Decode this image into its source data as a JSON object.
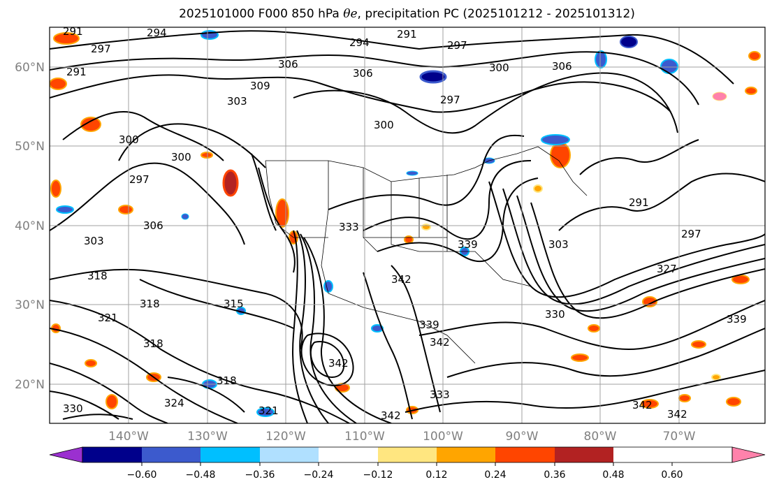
{
  "title_prefix": "2025101000 F000 850 hPa ",
  "title_symbol": "θe",
  "title_suffix": ", precipitation PC (2025101212 - 2025101312)",
  "colors": {
    "contour": "#000000",
    "grid": "#a0a0a0",
    "tick_label": "#808080"
  },
  "map": {
    "lon_range": [
      -150,
      -59
    ],
    "lat_range": [
      15,
      65
    ],
    "lon_ticks": [
      "140°W",
      "130°W",
      "120°W",
      "110°W",
      "100°W",
      "90°W",
      "80°W",
      "70°W"
    ],
    "lat_ticks": [
      "20°N",
      "30°N",
      "40°N",
      "50°N",
      "60°N"
    ],
    "contour_labels": [
      "291",
      "294",
      "297",
      "300",
      "303",
      "306",
      "309",
      "315",
      "318",
      "321",
      "324",
      "327",
      "330",
      "333",
      "339",
      "342"
    ]
  },
  "colorbar": {
    "colors": [
      "#9b30d0",
      "#00008b",
      "#3c5acd",
      "#00bfff",
      "#b0e0ff",
      "#ffffff",
      "#ffe680",
      "#ffa500",
      "#ff4500",
      "#b22222",
      "#ff82ab"
    ],
    "tick_labels": [
      "−0.60",
      "−0.48",
      "−0.36",
      "−0.24",
      "−0.12",
      "0.12",
      "0.24",
      "0.36",
      "0.48",
      "0.60"
    ]
  }
}
